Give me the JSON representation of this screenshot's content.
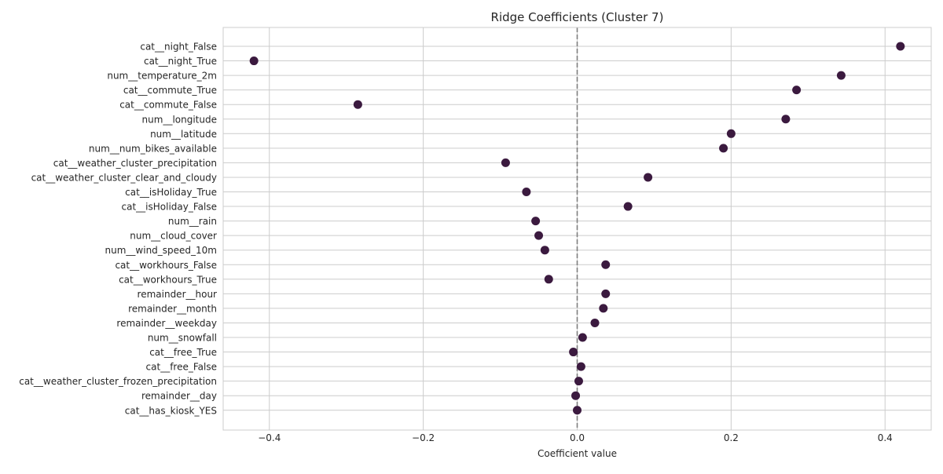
{
  "chart_data": {
    "type": "scatter",
    "title": "Ridge Coefficients (Cluster 7)",
    "xlabel": "Coefficient value",
    "ylabel": "",
    "xlim": [
      -0.46,
      0.46
    ],
    "xticks": [
      -0.4,
      -0.2,
      0.0,
      0.2,
      0.4
    ],
    "xtick_labels": [
      "−0.4",
      "−0.2",
      "0.0",
      "0.2",
      "0.4"
    ],
    "grid": true,
    "reference_line": {
      "x": 0,
      "style": "dashed"
    },
    "colors": {
      "point": "#3b1a3f",
      "grid": "#cccccc",
      "reference_line": "#7f7f7f",
      "spine": "#cccccc"
    },
    "categories": [
      "cat__night_False",
      "cat__night_True",
      "num__temperature_2m",
      "cat__commute_True",
      "cat__commute_False",
      "num__longitude",
      "num__latitude",
      "num__num_bikes_available",
      "cat__weather_cluster_precipitation",
      "cat__weather_cluster_clear_and_cloudy",
      "cat__isHoliday_True",
      "cat__isHoliday_False",
      "num__rain",
      "num__cloud_cover",
      "num__wind_speed_10m",
      "cat__workhours_False",
      "cat__workhours_True",
      "remainder__hour",
      "remainder__month",
      "remainder__weekday",
      "num__snowfall",
      "cat__free_True",
      "cat__free_False",
      "cat__weather_cluster_frozen_precipitation",
      "remainder__day",
      "cat__has_kiosk_YES"
    ],
    "values": [
      0.42,
      -0.42,
      0.343,
      0.285,
      -0.285,
      0.271,
      0.2,
      0.19,
      -0.093,
      0.092,
      -0.066,
      0.066,
      -0.054,
      -0.05,
      -0.042,
      0.037,
      -0.037,
      0.037,
      0.034,
      0.023,
      0.007,
      -0.005,
      0.005,
      0.002,
      -0.002,
      0.0
    ]
  }
}
